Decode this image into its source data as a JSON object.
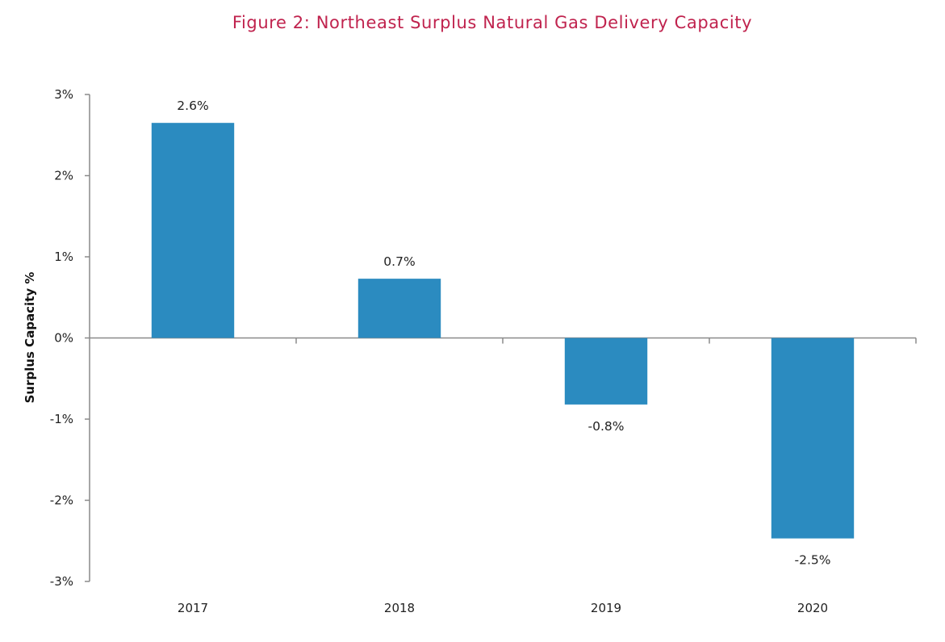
{
  "chart_data": {
    "type": "bar",
    "title": "Figure 2: Northeast Surplus Natural Gas Delivery Capacity",
    "xlabel": "",
    "ylabel": "Surplus Capacity %",
    "categories": [
      "2017",
      "2018",
      "2019",
      "2020"
    ],
    "values": [
      2.65,
      0.73,
      -0.82,
      -2.47
    ],
    "data_labels": [
      "2.6%",
      "0.7%",
      "-0.8%",
      "-2.5%"
    ],
    "ylim": [
      -3,
      3
    ],
    "yticks": [
      3,
      2,
      1,
      0,
      -1,
      -2,
      -3
    ],
    "ytick_labels": [
      "3%",
      "2%",
      "1%",
      "0%",
      "-1%",
      "-2%",
      "-3%"
    ],
    "grid": false,
    "legend": "none",
    "colors": {
      "bar": "#2b8bc0",
      "title": "#c0234e",
      "axis": "#8a8a8a"
    }
  }
}
